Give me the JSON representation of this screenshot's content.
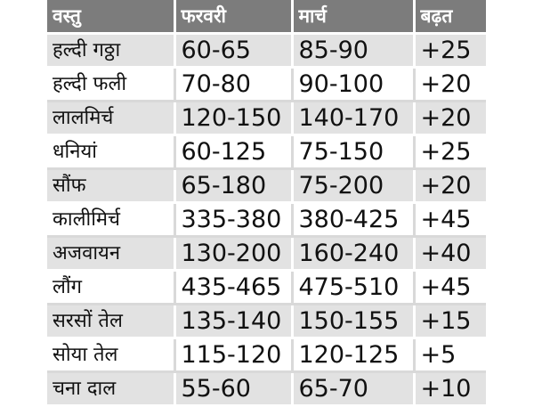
{
  "table": {
    "headers": [
      "वस्तु",
      "फरवरी",
      "मार्च",
      "बढ़त"
    ],
    "rows": [
      [
        "हल्दी गठ्ठा",
        "60-65",
        "85-90",
        "+25"
      ],
      [
        "हल्दी फली",
        "70-80",
        "90-100",
        "+20"
      ],
      [
        "लालमिर्च",
        "120-150",
        "140-170",
        "+20"
      ],
      [
        "धनियां",
        "60-125",
        "75-150",
        "+25"
      ],
      [
        "सौंफ",
        "65-180",
        "75-200",
        "+20"
      ],
      [
        "कालीमिर्च",
        "335-380",
        "380-425",
        "+45"
      ],
      [
        "अजवायन",
        "130-200",
        "160-240",
        "+40"
      ],
      [
        "लौंग",
        "435-465",
        "475-510",
        "+45"
      ],
      [
        "सरसों तेल",
        "135-140",
        "150-155",
        "+15"
      ],
      [
        "सोया तेल",
        "115-120",
        "120-125",
        "+5"
      ],
      [
        "चना दाल",
        "55-60",
        "65-70",
        "+10"
      ]
    ]
  },
  "colors": {
    "header_bg": "#7c7c7c",
    "header_text": "#ffffff",
    "row_shade": "#e2e2e2",
    "row_plain": "#ffffff"
  }
}
